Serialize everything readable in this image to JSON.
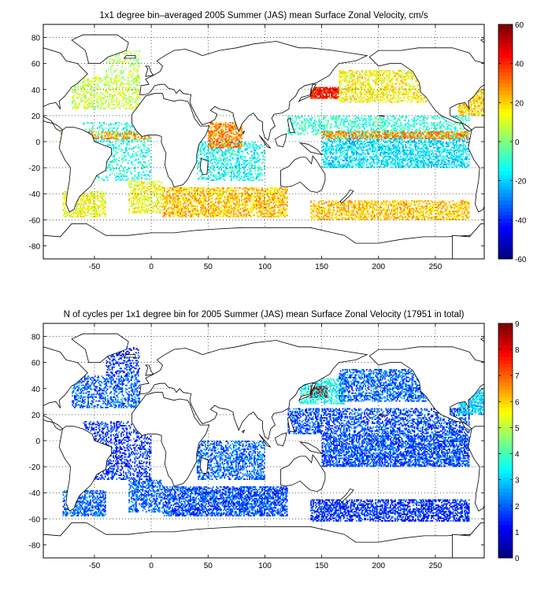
{
  "chart_data": [
    {
      "type": "heatmap",
      "title": "1x1 degree bin–averaged 2005 Summer (JAS) mean Surface Zonal Velocity, cm/s",
      "xlabel": "",
      "ylabel": "",
      "xlim": [
        -95,
        293
      ],
      "ylim": [
        -90,
        90
      ],
      "xticks": [
        -50,
        0,
        50,
        100,
        150,
        200,
        250
      ],
      "yticks": [
        -80,
        -60,
        -40,
        -20,
        0,
        20,
        40,
        60,
        80
      ],
      "colorbar": {
        "min": -60,
        "max": 60,
        "ticks": [
          -60,
          -40,
          -20,
          0,
          20,
          40,
          60
        ],
        "colormap": "jet"
      },
      "grid": true,
      "regions": [
        {
          "lon": [
            -78,
            -40
          ],
          "lat": [
            -58,
            -38
          ],
          "value": 14,
          "density": 0.5
        },
        {
          "lon": [
            -70,
            -10
          ],
          "lat": [
            25,
            50
          ],
          "value": 8,
          "density": 0.35
        },
        {
          "lon": [
            -40,
            -10
          ],
          "lat": [
            50,
            70
          ],
          "value": 6,
          "density": 0.2
        },
        {
          "lon": [
            -20,
            10
          ],
          "lat": [
            -55,
            -30
          ],
          "value": 14,
          "density": 0.45
        },
        {
          "lon": [
            10,
            120
          ],
          "lat": [
            -58,
            -35
          ],
          "value": 22,
          "density": 0.55
        },
        {
          "lon": [
            140,
            280
          ],
          "lat": [
            -60,
            -45
          ],
          "value": 22,
          "density": 0.5
        },
        {
          "lon": [
            -60,
            0
          ],
          "lat": [
            -30,
            15
          ],
          "value": -12,
          "density": 0.25
        },
        {
          "lon": [
            40,
            100
          ],
          "lat": [
            -30,
            0
          ],
          "value": -14,
          "density": 0.35
        },
        {
          "lon": [
            150,
            280
          ],
          "lat": [
            -20,
            5
          ],
          "value": -18,
          "density": 0.5
        },
        {
          "lon": [
            120,
            280
          ],
          "lat": [
            5,
            20
          ],
          "value": -10,
          "density": 0.35
        },
        {
          "lon": [
            140,
            165
          ],
          "lat": [
            33,
            42
          ],
          "value": 42,
          "density": 0.8
        },
        {
          "lon": [
            165,
            260
          ],
          "lat": [
            30,
            55
          ],
          "value": 16,
          "density": 0.45
        },
        {
          "lon": [
            150,
            280
          ],
          "lat": [
            2,
            8
          ],
          "value": 28,
          "density": 0.55
        },
        {
          "lon": [
            -80,
            0
          ],
          "lat": [
            2,
            8
          ],
          "value": 26,
          "density": 0.45
        },
        {
          "lon": [
            50,
            80
          ],
          "lat": [
            -5,
            15
          ],
          "value": 30,
          "density": 0.6
        },
        {
          "lon": [
            270,
            293
          ],
          "lat": [
            20,
            40
          ],
          "value": 20,
          "density": 0.6
        }
      ]
    },
    {
      "type": "heatmap",
      "title": "N of cycles per 1x1 degree bin for 2005 Summer (JAS) mean Surface Zonal Velocity (17951 in total)",
      "xlabel": "",
      "ylabel": "",
      "xlim": [
        -95,
        293
      ],
      "ylim": [
        -90,
        90
      ],
      "xticks": [
        -50,
        0,
        50,
        100,
        150,
        200,
        250
      ],
      "yticks": [
        -80,
        -60,
        -40,
        -20,
        0,
        20,
        40,
        60,
        80
      ],
      "colorbar": {
        "min": 0,
        "max": 9,
        "ticks": [
          0,
          1,
          2,
          3,
          4,
          5,
          6,
          7,
          8,
          9
        ],
        "colormap": "jet"
      },
      "grid": true,
      "total_cycles": 17951,
      "regions": [
        {
          "lon": [
            -78,
            -40
          ],
          "lat": [
            -58,
            -38
          ],
          "value": 2,
          "density": 0.55
        },
        {
          "lon": [
            -70,
            -10
          ],
          "lat": [
            25,
            50
          ],
          "value": 2,
          "density": 0.4
        },
        {
          "lon": [
            -40,
            -10
          ],
          "lat": [
            50,
            72
          ],
          "value": 1.5,
          "density": 0.3
        },
        {
          "lon": [
            -20,
            10
          ],
          "lat": [
            -55,
            -30
          ],
          "value": 2,
          "density": 0.45
        },
        {
          "lon": [
            10,
            120
          ],
          "lat": [
            -58,
            -35
          ],
          "value": 1.8,
          "density": 0.6
        },
        {
          "lon": [
            140,
            280
          ],
          "lat": [
            -62,
            -45
          ],
          "value": 1.5,
          "density": 0.55
        },
        {
          "lon": [
            -60,
            0
          ],
          "lat": [
            -30,
            15
          ],
          "value": 1.5,
          "density": 0.35
        },
        {
          "lon": [
            40,
            100
          ],
          "lat": [
            -30,
            0
          ],
          "value": 2,
          "density": 0.45
        },
        {
          "lon": [
            150,
            280
          ],
          "lat": [
            -20,
            5
          ],
          "value": 1.8,
          "density": 0.6
        },
        {
          "lon": [
            120,
            280
          ],
          "lat": [
            5,
            25
          ],
          "value": 1.8,
          "density": 0.45
        },
        {
          "lon": [
            140,
            155
          ],
          "lat": [
            33,
            42
          ],
          "value": 8.5,
          "density": 0.9
        },
        {
          "lon": [
            130,
            170
          ],
          "lat": [
            28,
            48
          ],
          "value": 3.5,
          "density": 0.5
        },
        {
          "lon": [
            165,
            260
          ],
          "lat": [
            30,
            55
          ],
          "value": 2,
          "density": 0.5
        },
        {
          "lon": [
            270,
            293
          ],
          "lat": [
            20,
            40
          ],
          "value": 3,
          "density": 0.6
        }
      ]
    }
  ]
}
